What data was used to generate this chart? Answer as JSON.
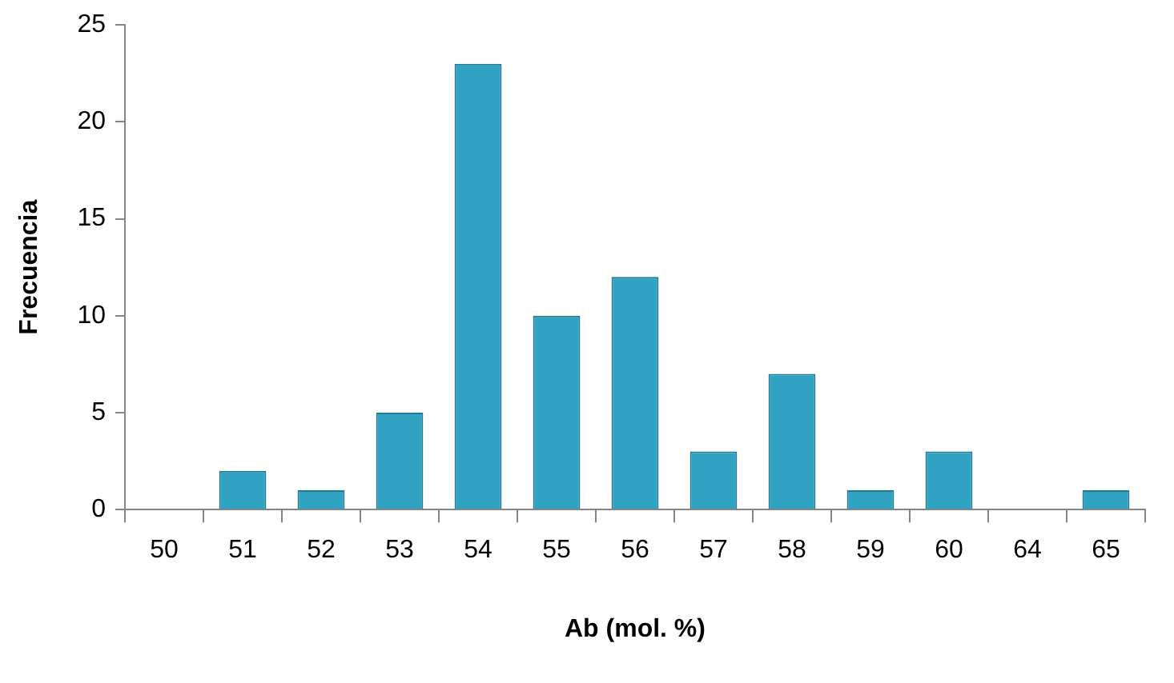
{
  "chart_data": {
    "type": "bar",
    "xlabel": "Ab (mol. %)",
    "ylabel": "Frecuencia",
    "categories": [
      "50",
      "51",
      "52",
      "53",
      "54",
      "55",
      "56",
      "57",
      "58",
      "59",
      "60",
      "64",
      "65"
    ],
    "values": [
      0,
      2,
      1,
      5,
      23,
      10,
      12,
      3,
      7,
      1,
      3,
      0,
      1
    ],
    "color": "#31a3c2",
    "ylim": [
      0,
      25
    ],
    "yticks": [
      0,
      5,
      10,
      15,
      20,
      25
    ],
    "grid": false,
    "legend": false
  }
}
